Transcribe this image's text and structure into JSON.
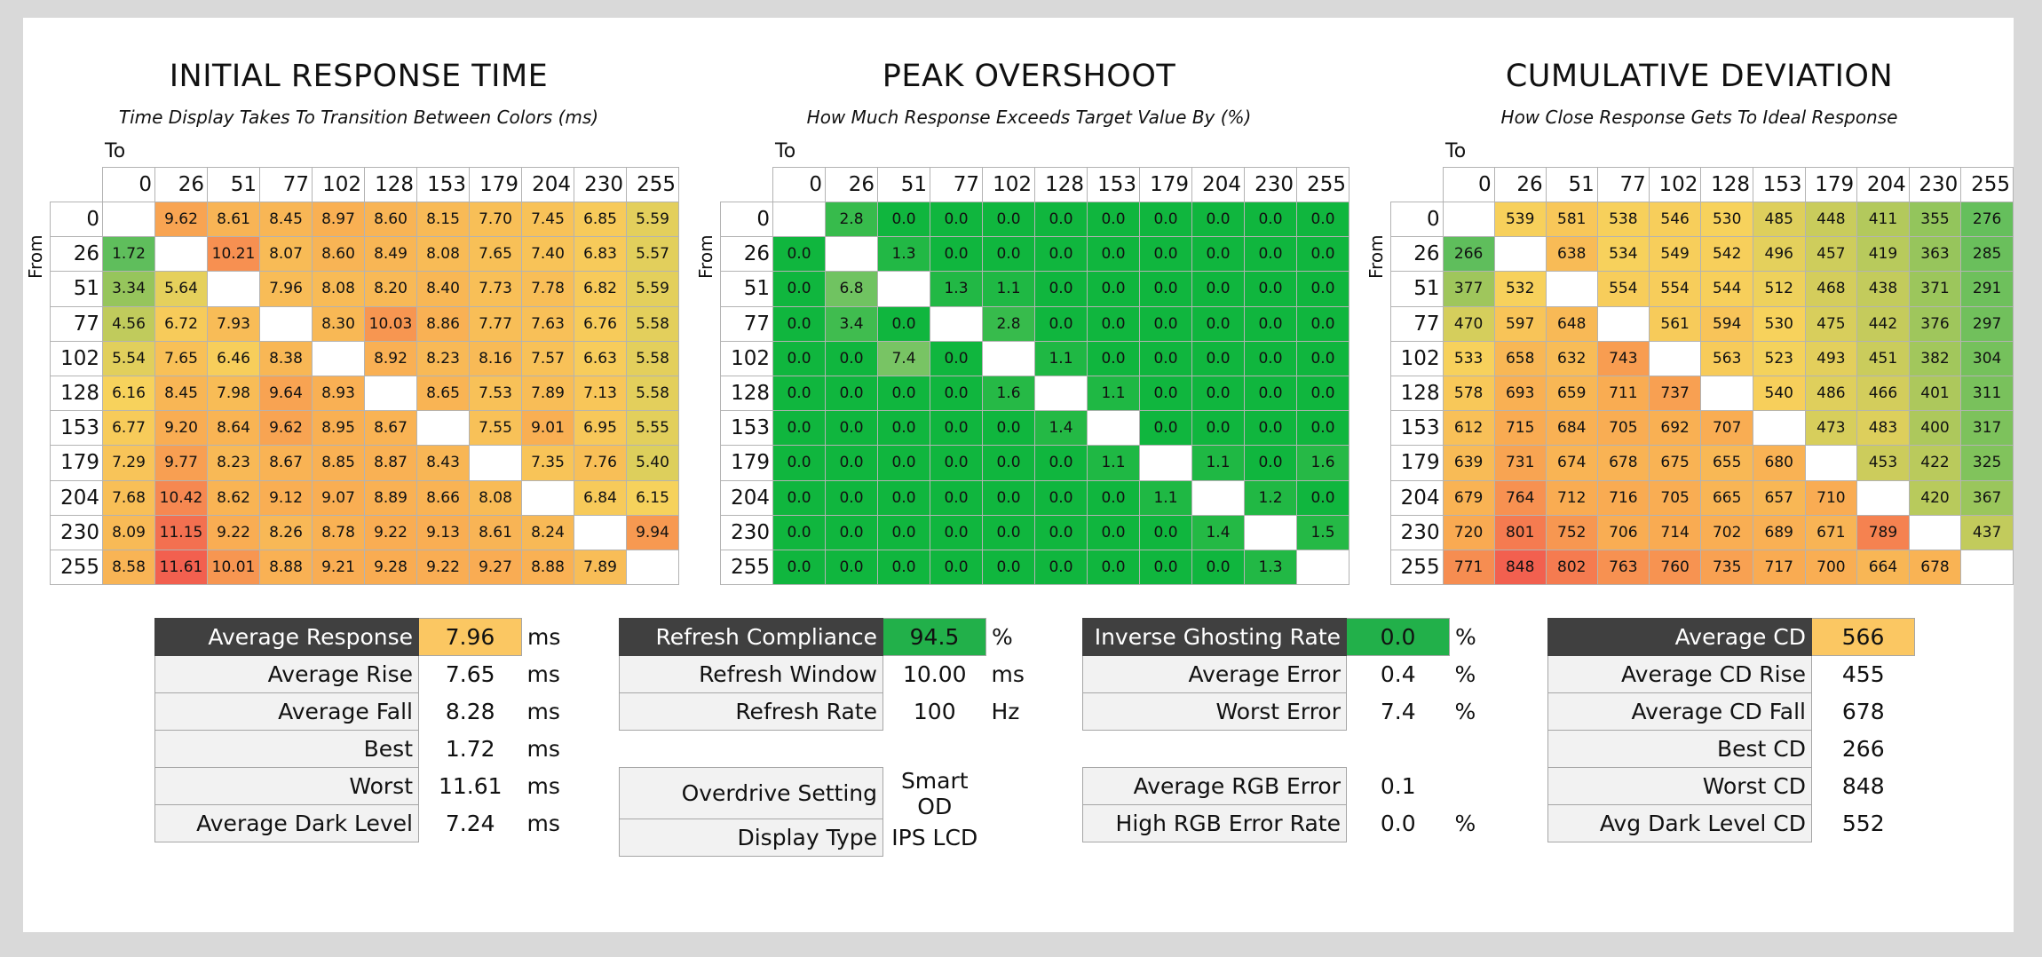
{
  "heatmaps": [
    {
      "id": "initial-response",
      "title": "INITIAL RESPONSE TIME",
      "subtitle": "Time Display Takes To Transition Between Colors (ms)",
      "to_label": "To",
      "from_label": "From",
      "scale": "yellow-green-red",
      "levels": [
        "0",
        "26",
        "51",
        "77",
        "102",
        "128",
        "153",
        "179",
        "204",
        "230",
        "255"
      ],
      "values": [
        [
          null,
          "9.62",
          "8.61",
          "8.45",
          "8.97",
          "8.60",
          "8.15",
          "7.70",
          "7.45",
          "6.85",
          "5.59"
        ],
        [
          "1.72",
          null,
          "10.21",
          "8.07",
          "8.60",
          "8.49",
          "8.08",
          "7.65",
          "7.40",
          "6.83",
          "5.57"
        ],
        [
          "3.34",
          "5.64",
          null,
          "7.96",
          "8.08",
          "8.20",
          "8.40",
          "7.73",
          "7.78",
          "6.82",
          "5.59"
        ],
        [
          "4.56",
          "6.72",
          "7.93",
          null,
          "8.30",
          "10.03",
          "8.86",
          "7.77",
          "7.63",
          "6.76",
          "5.58"
        ],
        [
          "5.54",
          "7.65",
          "6.46",
          "8.38",
          null,
          "8.92",
          "8.23",
          "8.16",
          "7.57",
          "6.63",
          "5.58"
        ],
        [
          "6.16",
          "8.45",
          "7.98",
          "9.64",
          "8.93",
          null,
          "8.65",
          "7.53",
          "7.89",
          "7.13",
          "5.58"
        ],
        [
          "6.77",
          "9.20",
          "8.64",
          "9.62",
          "8.95",
          "8.67",
          null,
          "7.55",
          "9.01",
          "6.95",
          "5.55"
        ],
        [
          "7.29",
          "9.77",
          "8.23",
          "8.67",
          "8.85",
          "8.87",
          "8.43",
          null,
          "7.35",
          "7.76",
          "5.40"
        ],
        [
          "7.68",
          "10.42",
          "8.62",
          "9.12",
          "9.07",
          "8.89",
          "8.66",
          "8.08",
          null,
          "6.84",
          "6.15"
        ],
        [
          "8.09",
          "11.15",
          "9.22",
          "8.26",
          "8.78",
          "9.22",
          "9.13",
          "8.61",
          "8.24",
          null,
          "9.94"
        ],
        [
          "8.58",
          "11.61",
          "10.01",
          "8.88",
          "9.21",
          "9.28",
          "9.22",
          "9.27",
          "8.88",
          "7.89",
          null
        ]
      ]
    },
    {
      "id": "peak-overshoot",
      "title": "PEAK OVERSHOOT",
      "subtitle": "How Much Response Exceeds Target Value By (%)",
      "to_label": "To",
      "from_label": "From",
      "scale": "green",
      "levels": [
        "0",
        "26",
        "51",
        "77",
        "102",
        "128",
        "153",
        "179",
        "204",
        "230",
        "255"
      ],
      "values": [
        [
          null,
          "2.8",
          "0.0",
          "0.0",
          "0.0",
          "0.0",
          "0.0",
          "0.0",
          "0.0",
          "0.0",
          "0.0"
        ],
        [
          "0.0",
          null,
          "1.3",
          "0.0",
          "0.0",
          "0.0",
          "0.0",
          "0.0",
          "0.0",
          "0.0",
          "0.0"
        ],
        [
          "0.0",
          "6.8",
          null,
          "1.3",
          "1.1",
          "0.0",
          "0.0",
          "0.0",
          "0.0",
          "0.0",
          "0.0"
        ],
        [
          "0.0",
          "3.4",
          "0.0",
          null,
          "2.8",
          "0.0",
          "0.0",
          "0.0",
          "0.0",
          "0.0",
          "0.0"
        ],
        [
          "0.0",
          "0.0",
          "7.4",
          "0.0",
          null,
          "1.1",
          "0.0",
          "0.0",
          "0.0",
          "0.0",
          "0.0"
        ],
        [
          "0.0",
          "0.0",
          "0.0",
          "0.0",
          "1.6",
          null,
          "1.1",
          "0.0",
          "0.0",
          "0.0",
          "0.0"
        ],
        [
          "0.0",
          "0.0",
          "0.0",
          "0.0",
          "0.0",
          "1.4",
          null,
          "0.0",
          "0.0",
          "0.0",
          "0.0"
        ],
        [
          "0.0",
          "0.0",
          "0.0",
          "0.0",
          "0.0",
          "0.0",
          "1.1",
          null,
          "1.1",
          "0.0",
          "1.6"
        ],
        [
          "0.0",
          "0.0",
          "0.0",
          "0.0",
          "0.0",
          "0.0",
          "0.0",
          "1.1",
          null,
          "1.2",
          "0.0"
        ],
        [
          "0.0",
          "0.0",
          "0.0",
          "0.0",
          "0.0",
          "0.0",
          "0.0",
          "0.0",
          "1.4",
          null,
          "1.5"
        ],
        [
          "0.0",
          "0.0",
          "0.0",
          "0.0",
          "0.0",
          "0.0",
          "0.0",
          "0.0",
          "0.0",
          "1.3",
          null
        ]
      ]
    },
    {
      "id": "cumulative-deviation",
      "title": "CUMULATIVE DEVIATION",
      "subtitle": "How Close Response Gets To Ideal Response",
      "to_label": "To",
      "from_label": "From",
      "scale": "yellow-green-red",
      "levels": [
        "0",
        "26",
        "51",
        "77",
        "102",
        "128",
        "153",
        "179",
        "204",
        "230",
        "255"
      ],
      "values": [
        [
          null,
          "539",
          "581",
          "538",
          "546",
          "530",
          "485",
          "448",
          "411",
          "355",
          "276"
        ],
        [
          "266",
          null,
          "638",
          "534",
          "549",
          "542",
          "496",
          "457",
          "419",
          "363",
          "285"
        ],
        [
          "377",
          "532",
          null,
          "554",
          "554",
          "544",
          "512",
          "468",
          "438",
          "371",
          "291"
        ],
        [
          "470",
          "597",
          "648",
          null,
          "561",
          "594",
          "530",
          "475",
          "442",
          "376",
          "297"
        ],
        [
          "533",
          "658",
          "632",
          "743",
          null,
          "563",
          "523",
          "493",
          "451",
          "382",
          "304"
        ],
        [
          "578",
          "693",
          "659",
          "711",
          "737",
          null,
          "540",
          "486",
          "466",
          "401",
          "311"
        ],
        [
          "612",
          "715",
          "684",
          "705",
          "692",
          "707",
          null,
          "473",
          "483",
          "400",
          "317"
        ],
        [
          "639",
          "731",
          "674",
          "678",
          "675",
          "655",
          "680",
          null,
          "453",
          "422",
          "325"
        ],
        [
          "679",
          "764",
          "712",
          "716",
          "705",
          "665",
          "657",
          "710",
          null,
          "420",
          "367"
        ],
        [
          "720",
          "801",
          "752",
          "706",
          "714",
          "702",
          "689",
          "671",
          "789",
          null,
          "437"
        ],
        [
          "771",
          "848",
          "802",
          "763",
          "760",
          "735",
          "717",
          "700",
          "664",
          "678",
          null
        ]
      ]
    }
  ],
  "stats": [
    {
      "id": "response-stats",
      "rows": [
        {
          "k": "Average Response",
          "v": "7.96",
          "u": "ms",
          "dark": true,
          "vcolor": "#fbc762"
        },
        {
          "k": "Average Rise",
          "v": "7.65",
          "u": "ms"
        },
        {
          "k": "Average Fall",
          "v": "8.28",
          "u": "ms"
        },
        {
          "k": "Best",
          "v": "1.72",
          "u": "ms"
        },
        {
          "k": "Worst",
          "v": "11.61",
          "u": "ms"
        },
        {
          "k": "Average Dark Level",
          "v": "7.24",
          "u": "ms"
        }
      ]
    },
    {
      "id": "refresh-stats",
      "rows": [
        {
          "k": "Refresh Compliance",
          "v": "94.5",
          "u": "%",
          "dark": true,
          "vcolor": "#22b04a"
        },
        {
          "k": "Refresh Window",
          "v": "10.00",
          "u": "ms"
        },
        {
          "k": "Refresh Rate",
          "v": "100",
          "u": "Hz"
        },
        {
          "gap": true
        },
        {
          "k": "Overdrive Setting",
          "v": "Smart OD",
          "u": ""
        },
        {
          "k": "Display Type",
          "v": "IPS LCD",
          "u": ""
        }
      ]
    },
    {
      "id": "error-stats",
      "rows": [
        {
          "k": "Inverse Ghosting Rate",
          "v": "0.0",
          "u": "%",
          "dark": true,
          "vcolor": "#22b04a"
        },
        {
          "k": "Average Error",
          "v": "0.4",
          "u": "%"
        },
        {
          "k": "Worst Error",
          "v": "7.4",
          "u": "%"
        },
        {
          "gap": true
        },
        {
          "k": "Average RGB Error",
          "v": "0.1",
          "u": ""
        },
        {
          "k": "High RGB Error Rate",
          "v": "0.0",
          "u": "%"
        }
      ]
    },
    {
      "id": "cd-stats",
      "rows": [
        {
          "k": "Average CD",
          "v": "566",
          "u": "",
          "dark": true,
          "vcolor": "#fbc762"
        },
        {
          "k": "Average CD Rise",
          "v": "455",
          "u": ""
        },
        {
          "k": "Average CD Fall",
          "v": "678",
          "u": ""
        },
        {
          "k": "Best CD",
          "v": "266",
          "u": ""
        },
        {
          "k": "Worst CD",
          "v": "848",
          "u": ""
        },
        {
          "k": "Avg Dark Level CD",
          "v": "552",
          "u": ""
        }
      ]
    }
  ],
  "colors": {
    "good": "#5fbe5c",
    "mid": "#f7d25c",
    "bad": "#f2604f",
    "overshoot_green": "#10b63e"
  },
  "chart_data": [
    {
      "type": "heatmap",
      "title": "INITIAL RESPONSE TIME",
      "subtitle": "Time Display Takes To Transition Between Colors (ms)",
      "xlabel": "To",
      "ylabel": "From",
      "x": [
        "0",
        "26",
        "51",
        "77",
        "102",
        "128",
        "153",
        "179",
        "204",
        "230",
        "255"
      ],
      "y": [
        "0",
        "26",
        "51",
        "77",
        "102",
        "128",
        "153",
        "179",
        "204",
        "230",
        "255"
      ],
      "source": "heatmaps.0.values"
    },
    {
      "type": "heatmap",
      "title": "PEAK OVERSHOOT",
      "subtitle": "How Much Response Exceeds Target Value By (%)",
      "xlabel": "To",
      "ylabel": "From",
      "x": [
        "0",
        "26",
        "51",
        "77",
        "102",
        "128",
        "153",
        "179",
        "204",
        "230",
        "255"
      ],
      "y": [
        "0",
        "26",
        "51",
        "77",
        "102",
        "128",
        "153",
        "179",
        "204",
        "230",
        "255"
      ],
      "source": "heatmaps.1.values"
    },
    {
      "type": "heatmap",
      "title": "CUMULATIVE DEVIATION",
      "subtitle": "How Close Response Gets To Ideal Response",
      "xlabel": "To",
      "ylabel": "From",
      "x": [
        "0",
        "26",
        "51",
        "77",
        "102",
        "128",
        "153",
        "179",
        "204",
        "230",
        "255"
      ],
      "y": [
        "0",
        "26",
        "51",
        "77",
        "102",
        "128",
        "153",
        "179",
        "204",
        "230",
        "255"
      ],
      "source": "heatmaps.2.values"
    }
  ]
}
